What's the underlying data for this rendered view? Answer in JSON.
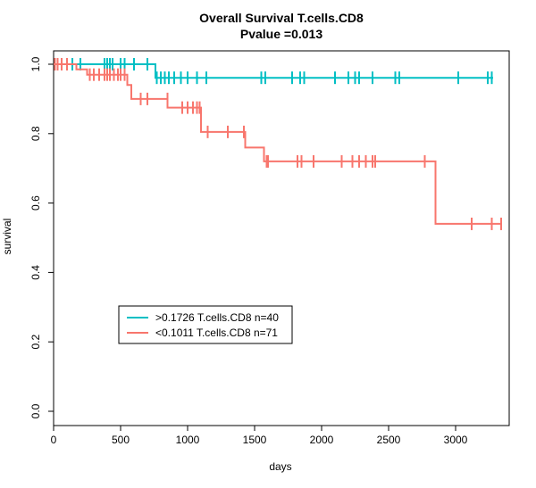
{
  "chart_data": {
    "type": "line",
    "subtype": "kaplan-meier",
    "title": "Overall Survival T.cells.CD8",
    "subtitle": "Pvalue =0.013",
    "xlabel": "days",
    "ylabel": "survival",
    "xlim": [
      0,
      3400
    ],
    "ylim": [
      0,
      1
    ],
    "x_ticks": [
      0,
      500,
      1000,
      1500,
      2000,
      2500,
      3000
    ],
    "y_ticks": [
      "0.0",
      "0.2",
      "0.4",
      "0.6",
      "0.8",
      "1.0"
    ],
    "grid": false,
    "legend_position": "bottom-left",
    "series": [
      {
        "name": ">0.1726 T.cells.CD8 n=40",
        "color": "#00BFC4",
        "steps": [
          [
            0,
            1.0
          ],
          [
            760,
            1.0
          ],
          [
            760,
            0.961
          ],
          [
            3280,
            0.961
          ]
        ],
        "censors": [
          [
            10,
            1.0
          ],
          [
            30,
            1.0
          ],
          [
            60,
            1.0
          ],
          [
            100,
            1.0
          ],
          [
            140,
            1.0
          ],
          [
            200,
            1.0
          ],
          [
            380,
            1.0
          ],
          [
            400,
            1.0
          ],
          [
            420,
            1.0
          ],
          [
            440,
            1.0
          ],
          [
            500,
            1.0
          ],
          [
            530,
            1.0
          ],
          [
            600,
            1.0
          ],
          [
            700,
            1.0
          ],
          [
            770,
            0.961
          ],
          [
            800,
            0.961
          ],
          [
            830,
            0.961
          ],
          [
            860,
            0.961
          ],
          [
            900,
            0.961
          ],
          [
            950,
            0.961
          ],
          [
            1000,
            0.961
          ],
          [
            1070,
            0.961
          ],
          [
            1140,
            0.961
          ],
          [
            1550,
            0.961
          ],
          [
            1580,
            0.961
          ],
          [
            1780,
            0.961
          ],
          [
            1840,
            0.961
          ],
          [
            1870,
            0.961
          ],
          [
            2100,
            0.961
          ],
          [
            2200,
            0.961
          ],
          [
            2250,
            0.961
          ],
          [
            2280,
            0.961
          ],
          [
            2380,
            0.961
          ],
          [
            2550,
            0.961
          ],
          [
            2580,
            0.961
          ],
          [
            3020,
            0.961
          ],
          [
            3240,
            0.961
          ],
          [
            3270,
            0.961
          ]
        ]
      },
      {
        "name": "<0.1011 T.cells.CD8 n=71",
        "color": "#F8766D",
        "steps": [
          [
            0,
            1.0
          ],
          [
            170,
            1.0
          ],
          [
            170,
            0.985
          ],
          [
            250,
            0.985
          ],
          [
            250,
            0.97
          ],
          [
            550,
            0.97
          ],
          [
            550,
            0.94
          ],
          [
            580,
            0.94
          ],
          [
            580,
            0.9
          ],
          [
            850,
            0.9
          ],
          [
            850,
            0.875
          ],
          [
            1100,
            0.875
          ],
          [
            1100,
            0.805
          ],
          [
            1430,
            0.805
          ],
          [
            1430,
            0.76
          ],
          [
            1570,
            0.76
          ],
          [
            1570,
            0.72
          ],
          [
            2850,
            0.72
          ],
          [
            2850,
            0.54
          ],
          [
            3340,
            0.54
          ]
        ],
        "censors": [
          [
            10,
            1.0
          ],
          [
            30,
            1.0
          ],
          [
            60,
            1.0
          ],
          [
            100,
            1.0
          ],
          [
            270,
            0.97
          ],
          [
            300,
            0.97
          ],
          [
            340,
            0.97
          ],
          [
            380,
            0.97
          ],
          [
            400,
            0.97
          ],
          [
            420,
            0.97
          ],
          [
            450,
            0.97
          ],
          [
            480,
            0.97
          ],
          [
            500,
            0.97
          ],
          [
            530,
            0.97
          ],
          [
            650,
            0.9
          ],
          [
            700,
            0.9
          ],
          [
            850,
            0.9
          ],
          [
            960,
            0.875
          ],
          [
            1000,
            0.875
          ],
          [
            1040,
            0.875
          ],
          [
            1070,
            0.875
          ],
          [
            1090,
            0.875
          ],
          [
            1150,
            0.805
          ],
          [
            1300,
            0.805
          ],
          [
            1420,
            0.805
          ],
          [
            1590,
            0.72
          ],
          [
            1600,
            0.72
          ],
          [
            1820,
            0.72
          ],
          [
            1850,
            0.72
          ],
          [
            1940,
            0.72
          ],
          [
            2150,
            0.72
          ],
          [
            2230,
            0.72
          ],
          [
            2280,
            0.72
          ],
          [
            2330,
            0.72
          ],
          [
            2380,
            0.72
          ],
          [
            2400,
            0.72
          ],
          [
            2770,
            0.72
          ],
          [
            3120,
            0.54
          ],
          [
            3270,
            0.54
          ],
          [
            3340,
            0.54
          ]
        ]
      }
    ]
  }
}
